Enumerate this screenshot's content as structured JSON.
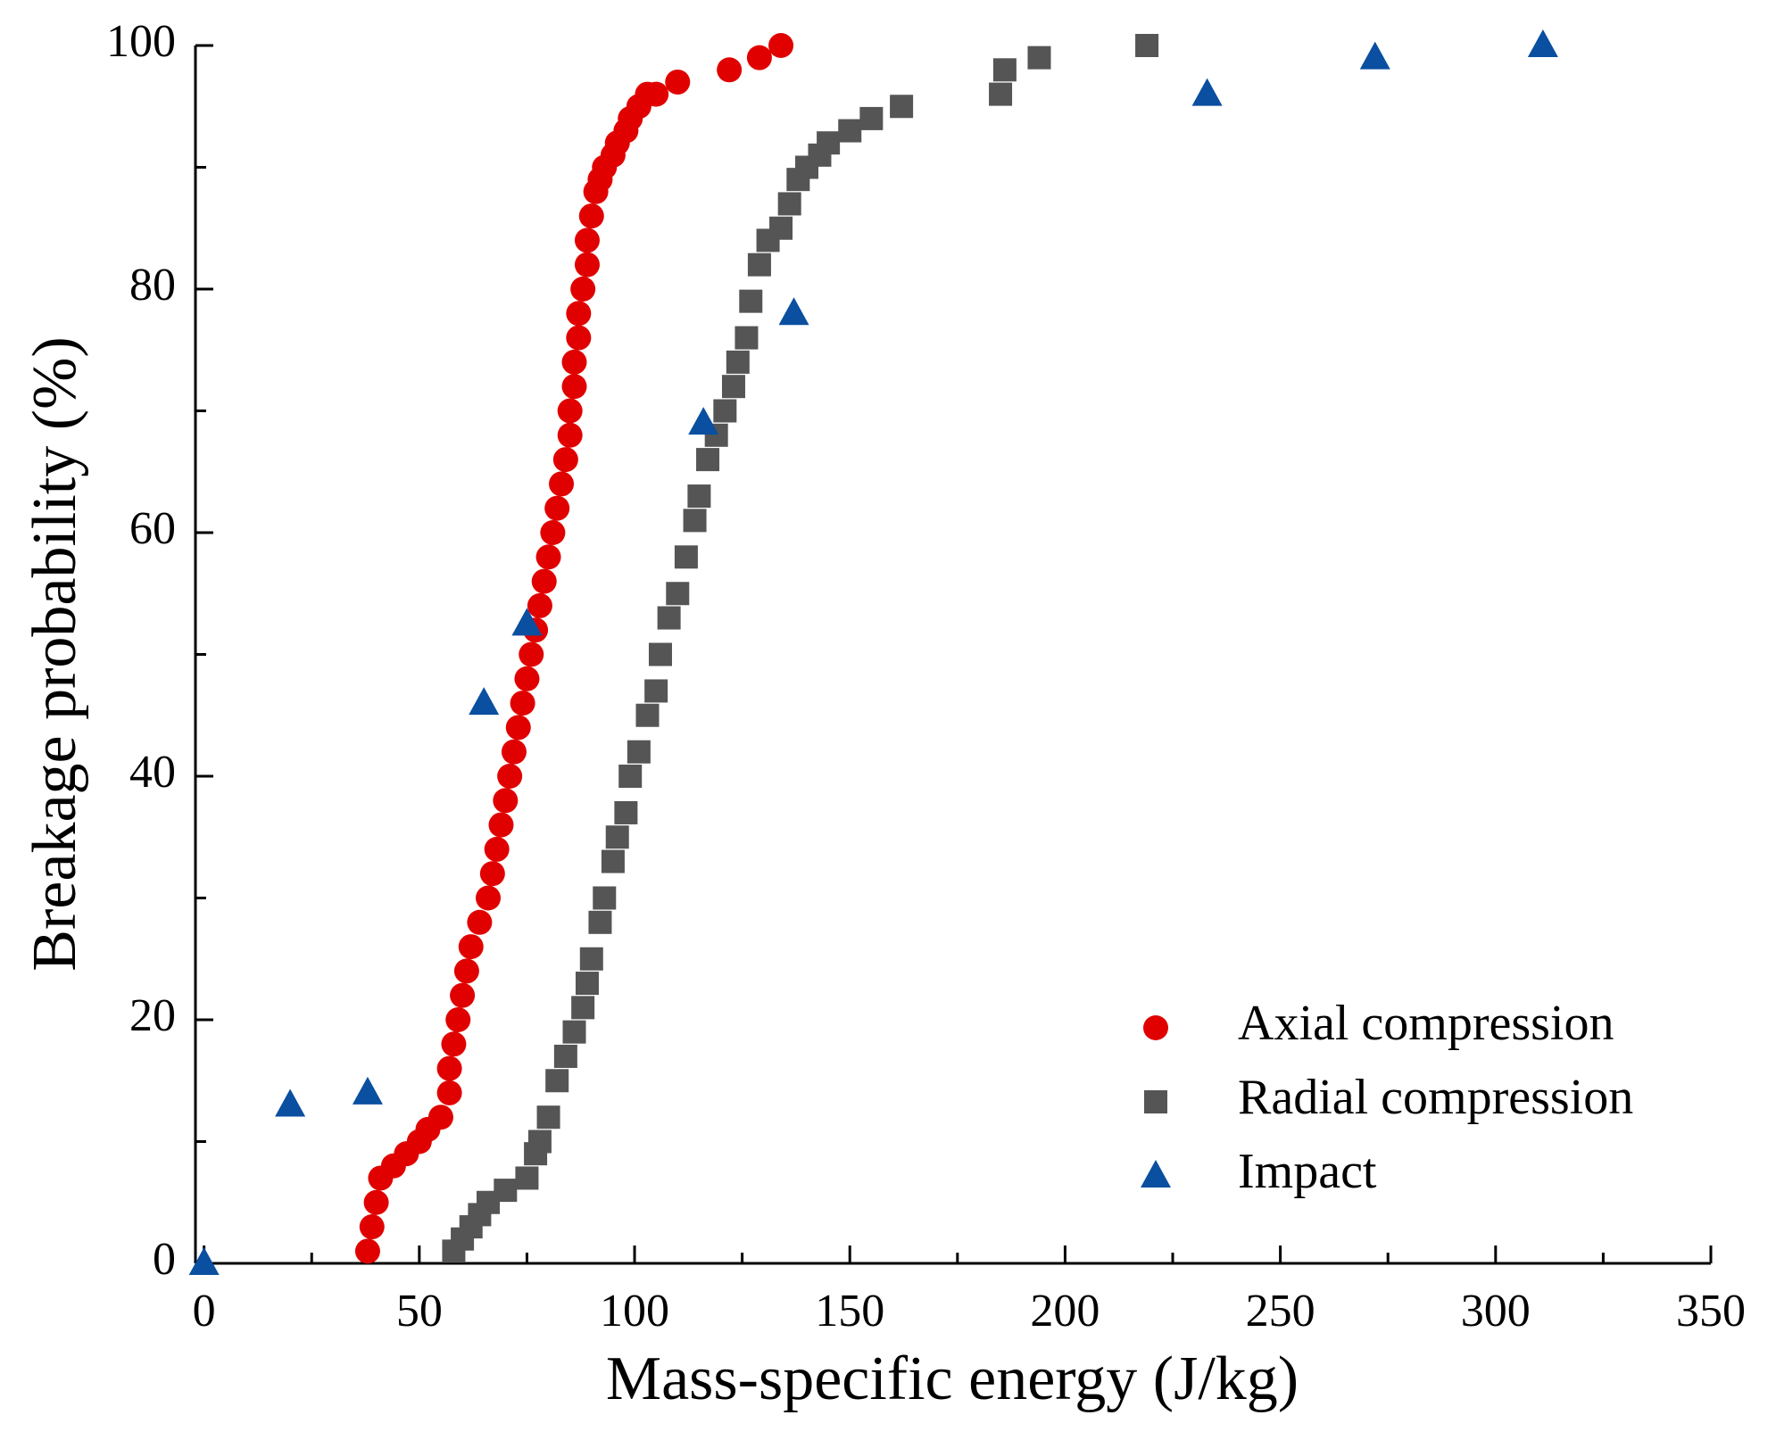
{
  "chart_data": {
    "type": "scatter",
    "xlabel": "Mass-specific energy (J/kg)",
    "ylabel": "Breakage probability (%)",
    "xlim": [
      -2,
      350
    ],
    "ylim": [
      0,
      100
    ],
    "xticks": [
      0,
      50,
      100,
      150,
      200,
      250,
      300,
      350
    ],
    "yticks": [
      0,
      20,
      40,
      60,
      80,
      100
    ],
    "xminorticks": [
      25,
      75,
      125,
      175,
      225,
      275,
      325
    ],
    "yminorticks": [
      10,
      30,
      50,
      70,
      90
    ],
    "grid": false,
    "legend": "lower right",
    "series": [
      {
        "name": "Axial compression",
        "color": "#e00000",
        "marker": "circle",
        "x": [
          38,
          39,
          40,
          41,
          44,
          47,
          50,
          52,
          55,
          57,
          57,
          58,
          59,
          60,
          61,
          62,
          64,
          66,
          67,
          68,
          69,
          70,
          71,
          72,
          73,
          74,
          75,
          76,
          77,
          78,
          79,
          80,
          81,
          82,
          83,
          84,
          85,
          85,
          86,
          86,
          87,
          87,
          88,
          89,
          89,
          90,
          91,
          92,
          93,
          95,
          96,
          98,
          99,
          101,
          103,
          105,
          110,
          122,
          129,
          134
        ],
        "values": [
          1,
          3,
          5,
          7,
          8,
          9,
          10,
          11,
          12,
          14,
          16,
          18,
          20,
          22,
          24,
          26,
          28,
          30,
          32,
          34,
          36,
          38,
          40,
          42,
          44,
          46,
          48,
          50,
          52,
          54,
          56,
          58,
          60,
          62,
          64,
          66,
          68,
          70,
          72,
          74,
          76,
          78,
          80,
          82,
          84,
          86,
          88,
          89,
          90,
          91,
          92,
          93,
          94,
          95,
          96,
          96,
          97,
          98,
          99,
          100
        ]
      },
      {
        "name": "Radial compression",
        "color": "#555555",
        "marker": "square",
        "x": [
          58,
          60,
          62,
          64,
          66,
          70,
          75,
          77,
          78,
          80,
          82,
          84,
          86,
          88,
          89,
          90,
          92,
          93,
          95,
          96,
          98,
          99,
          101,
          103,
          105,
          106,
          108,
          110,
          112,
          114,
          115,
          117,
          119,
          121,
          123,
          124,
          126,
          127,
          129,
          131,
          134,
          136,
          138,
          140,
          143,
          145,
          150,
          155,
          162,
          185,
          186,
          194,
          219
        ],
        "values": [
          1,
          2,
          3,
          4,
          5,
          6,
          7,
          9,
          10,
          12,
          15,
          17,
          19,
          21,
          23,
          25,
          28,
          30,
          33,
          35,
          37,
          40,
          42,
          45,
          47,
          50,
          53,
          55,
          58,
          61,
          63,
          66,
          68,
          70,
          72,
          74,
          76,
          79,
          82,
          84,
          85,
          87,
          89,
          90,
          91,
          92,
          93,
          94,
          95,
          96,
          98,
          99,
          100
        ]
      },
      {
        "name": "Impact",
        "color": "#0a4fa0",
        "marker": "triangle",
        "x": [
          0,
          20,
          38,
          65,
          75,
          116,
          137,
          233,
          272,
          311
        ],
        "values": [
          0,
          13,
          14,
          46,
          52.5,
          69,
          78,
          96,
          99,
          100
        ]
      }
    ]
  }
}
